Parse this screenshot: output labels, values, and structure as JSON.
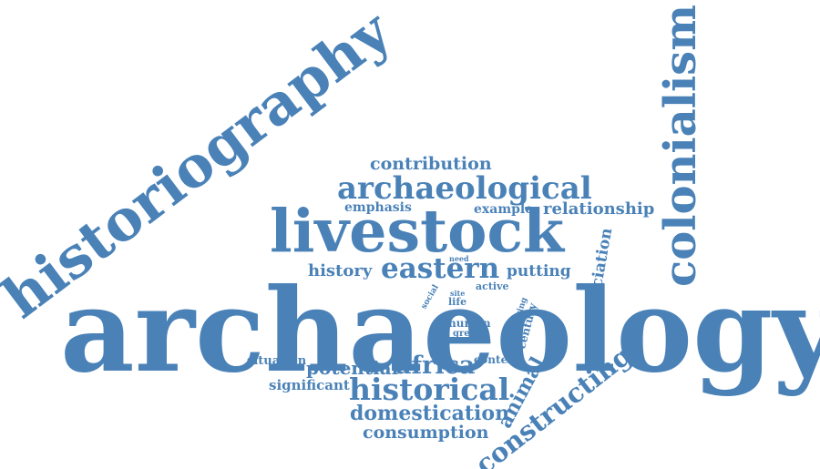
{
  "colors": {
    "word": "#4a82b8",
    "background": "#ffffff"
  },
  "words": {
    "archaeology": "archaeology",
    "historiography": "historiography",
    "colonialism": "colonialism",
    "livestock": "livestock",
    "archaeological": "archaeological",
    "contribution": "contribution",
    "emphasis": "emphasis",
    "example": "example",
    "relationship": "relationship",
    "history": "history",
    "eastern": "eastern",
    "putting": "putting",
    "need": "need",
    "active": "active",
    "social": "social",
    "life": "life",
    "site": "site",
    "human": "human",
    "great": "great",
    "living": "living",
    "century": "century",
    "association": "association",
    "situation": "situation",
    "potential": "potential",
    "africa": "africa",
    "context": "context",
    "significant": "significant",
    "historical": "historical",
    "animal": "animal",
    "domestication": "domestication",
    "consumption": "consumption",
    "constructing": "constructing"
  }
}
